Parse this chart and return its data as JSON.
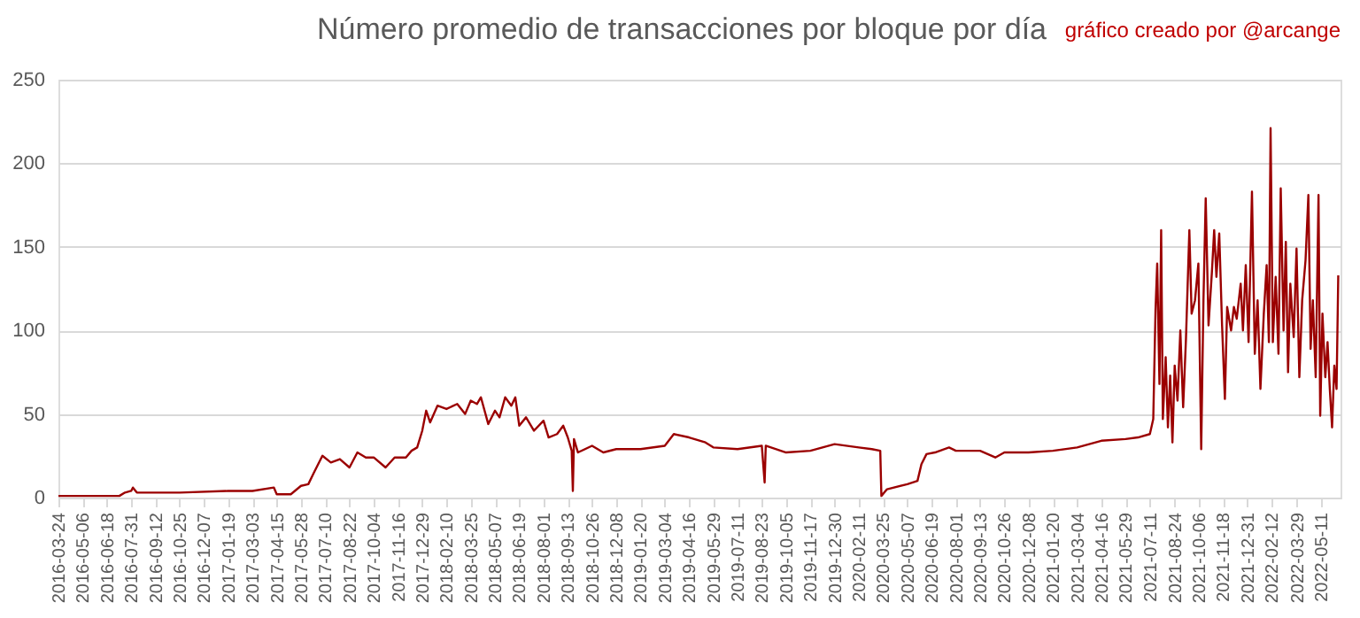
{
  "chart_data": {
    "type": "line",
    "title": "Número promedio de transacciones por bloque por día",
    "annotations": [
      "gráfico creado por @arcange"
    ],
    "x": [
      "2016-03-24",
      "2016-07-10",
      "2016-07-20",
      "2016-07-31",
      "2016-08-03",
      "2016-08-10",
      "2016-10-25",
      "2017-01-19",
      "2017-03-03",
      "2017-04-10",
      "2017-04-15",
      "2017-05-10",
      "2017-05-28",
      "2017-06-10",
      "2017-06-20",
      "2017-07-05",
      "2017-07-20",
      "2017-08-05",
      "2017-08-22",
      "2017-09-05",
      "2017-09-20",
      "2017-10-04",
      "2017-10-25",
      "2017-11-10",
      "2017-11-30",
      "2017-12-10",
      "2017-12-20",
      "2017-12-29",
      "2018-01-05",
      "2018-01-12",
      "2018-01-25",
      "2018-02-10",
      "2018-03-01",
      "2018-03-15",
      "2018-03-25",
      "2018-04-05",
      "2018-04-12",
      "2018-04-25",
      "2018-05-07",
      "2018-05-15",
      "2018-05-25",
      "2018-06-05",
      "2018-06-12",
      "2018-06-19",
      "2018-07-01",
      "2018-07-15",
      "2018-08-01",
      "2018-08-10",
      "2018-08-25",
      "2018-09-05",
      "2018-09-13",
      "2018-09-20",
      "2018-09-22",
      "2018-09-24",
      "2018-10-01",
      "2018-10-26",
      "2018-11-15",
      "2018-12-08",
      "2019-01-20",
      "2019-03-04",
      "2019-03-20",
      "2019-04-16",
      "2019-05-15",
      "2019-05-29",
      "2019-07-11",
      "2019-08-23",
      "2019-08-28",
      "2019-08-30",
      "2019-10-05",
      "2019-11-17",
      "2019-12-30",
      "2020-02-11",
      "2020-03-05",
      "2020-03-20",
      "2020-03-22",
      "2020-04-01",
      "2020-05-07",
      "2020-05-25",
      "2020-06-01",
      "2020-06-10",
      "2020-06-25",
      "2020-07-20",
      "2020-08-01",
      "2020-09-13",
      "2020-10-10",
      "2020-10-26",
      "2020-12-08",
      "2021-01-20",
      "2021-03-04",
      "2021-04-16",
      "2021-05-29",
      "2021-06-20",
      "2021-07-11",
      "2021-07-15",
      "2021-07-17",
      "2021-07-21",
      "2021-07-24",
      "2021-07-28",
      "2021-07-31",
      "2021-08-03",
      "2021-08-08",
      "2021-08-12",
      "2021-08-16",
      "2021-08-20",
      "2021-08-24",
      "2021-08-29",
      "2021-09-03",
      "2021-09-08",
      "2021-09-13",
      "2021-09-19",
      "2021-09-23",
      "2021-09-29",
      "2021-10-05",
      "2021-10-10",
      "2021-10-14",
      "2021-10-18",
      "2021-10-23",
      "2021-10-29",
      "2021-11-02",
      "2021-11-06",
      "2021-11-11",
      "2021-11-16",
      "2021-11-21",
      "2021-11-25",
      "2021-12-02",
      "2021-12-07",
      "2021-12-12",
      "2021-12-19",
      "2021-12-23",
      "2021-12-28",
      "2022-01-02",
      "2022-01-08",
      "2022-01-13",
      "2022-01-18",
      "2022-01-23",
      "2022-01-29",
      "2022-02-03",
      "2022-02-07",
      "2022-02-10",
      "2022-02-14",
      "2022-02-19",
      "2022-02-24",
      "2022-02-28",
      "2022-03-05",
      "2022-03-09",
      "2022-03-13",
      "2022-03-17",
      "2022-03-23",
      "2022-03-28",
      "2022-04-02",
      "2022-04-07",
      "2022-04-13",
      "2022-04-18",
      "2022-04-22",
      "2022-04-26",
      "2022-05-01",
      "2022-05-06",
      "2022-05-09",
      "2022-05-13",
      "2022-05-18",
      "2022-05-22",
      "2022-05-26",
      "2022-05-30",
      "2022-06-03",
      "2022-06-07",
      "2022-06-10"
    ],
    "series": [
      {
        "color": "#9b0000",
        "values": [
          1,
          1,
          3,
          4,
          6,
          3,
          3,
          4,
          4,
          6,
          2,
          2,
          7,
          8,
          15,
          25,
          21,
          23,
          18,
          27,
          24,
          24,
          18,
          24,
          24,
          28,
          30,
          40,
          52,
          45,
          55,
          53,
          56,
          50,
          58,
          56,
          60,
          44,
          52,
          48,
          60,
          55,
          60,
          43,
          48,
          40,
          46,
          36,
          38,
          43,
          36,
          28,
          4,
          35,
          27,
          31,
          27,
          29,
          29,
          31,
          38,
          36,
          33,
          30,
          29,
          31,
          9,
          31,
          27,
          28,
          32,
          30,
          29,
          28,
          1,
          5,
          8,
          10,
          20,
          26,
          27,
          30,
          28,
          28,
          24,
          27,
          27,
          28,
          30,
          34,
          35,
          36,
          38,
          44,
          47,
          112,
          140,
          68,
          160,
          47,
          84,
          42,
          73,
          33,
          79,
          58,
          100,
          54,
          95,
          160,
          110,
          118,
          140,
          29,
          118,
          179,
          103,
          135,
          160,
          132,
          158,
          103,
          59,
          114,
          100,
          114,
          107,
          128,
          100,
          139,
          93,
          183,
          86,
          118,
          65,
          110,
          139,
          93,
          221,
          93,
          132,
          86,
          185,
          100,
          153,
          75,
          128,
          96,
          149,
          72,
          118,
          142,
          181,
          89,
          118,
          72,
          181,
          49,
          110,
          72,
          93,
          65,
          42,
          79,
          65,
          133
        ]
      }
    ],
    "xlim": [
      "2016-03-24",
      "2022-06-14"
    ],
    "xticks": [
      "2016-03-24",
      "2016-05-06",
      "2016-06-18",
      "2016-07-31",
      "2016-09-12",
      "2016-10-25",
      "2016-12-07",
      "2017-01-19",
      "2017-03-03",
      "2017-04-15",
      "2017-05-28",
      "2017-07-10",
      "2017-08-22",
      "2017-10-04",
      "2017-11-16",
      "2017-12-29",
      "2018-02-10",
      "2018-03-25",
      "2018-05-07",
      "2018-06-19",
      "2018-08-01",
      "2018-09-13",
      "2018-10-26",
      "2018-12-08",
      "2019-01-20",
      "2019-03-04",
      "2019-04-16",
      "2019-05-29",
      "2019-07-11",
      "2019-08-23",
      "2019-10-05",
      "2019-11-17",
      "2019-12-30",
      "2020-02-11",
      "2020-03-25",
      "2020-05-07",
      "2020-06-19",
      "2020-08-01",
      "2020-09-13",
      "2020-10-26",
      "2020-12-08",
      "2021-01-20",
      "2021-03-04",
      "2021-04-16",
      "2021-05-29",
      "2021-07-11",
      "2021-08-24",
      "2021-10-06",
      "2021-11-18",
      "2021-12-31",
      "2022-02-12",
      "2022-03-29",
      "2022-05-11"
    ],
    "ylim": [
      0,
      250
    ],
    "yticks": [
      0,
      50,
      100,
      150,
      200,
      250
    ],
    "grid": "y",
    "marker": "none",
    "line_style": "solid"
  }
}
